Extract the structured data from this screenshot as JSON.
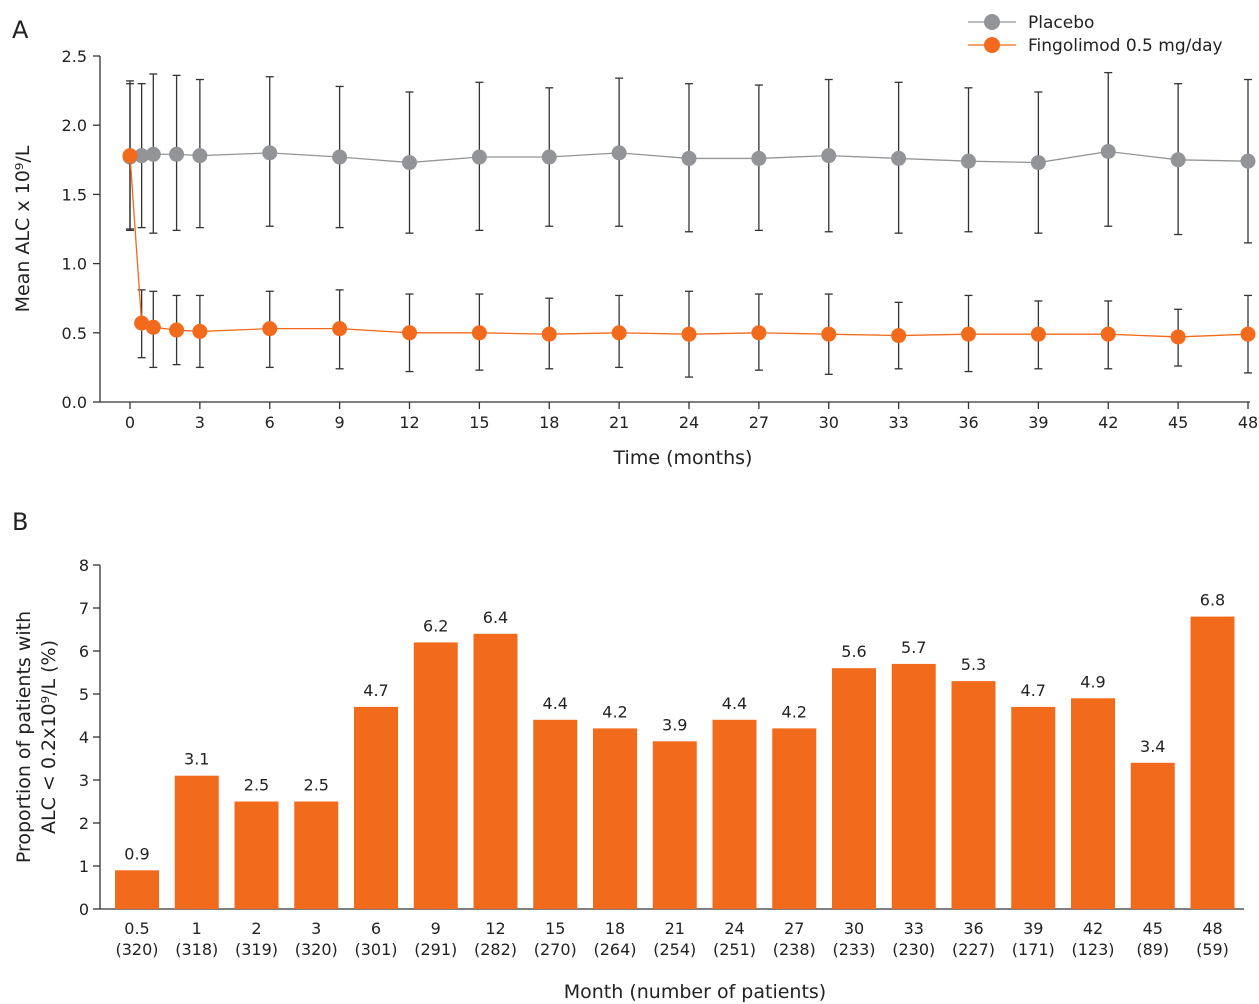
{
  "chart_data": [
    {
      "panel_label": "A",
      "type": "line",
      "xlabel": "Time (months)",
      "ylabel": "Mean ALC x 10⁹/L",
      "xlim": [
        0,
        48
      ],
      "ylim": [
        0,
        2.5
      ],
      "x_ticks": [
        "0",
        "3",
        "6",
        "9",
        "12",
        "15",
        "18",
        "21",
        "24",
        "27",
        "30",
        "33",
        "36",
        "39",
        "42",
        "45",
        "48"
      ],
      "y_ticks": [
        "0.0",
        "0.5",
        "1.0",
        "1.5",
        "2.0",
        "2.5"
      ],
      "grid": false,
      "legend_position": "top-right",
      "series": [
        {
          "name": "Placebo",
          "color": "#929497",
          "x": [
            0,
            0.5,
            1,
            2,
            3,
            6,
            9,
            12,
            15,
            18,
            21,
            24,
            27,
            30,
            33,
            36,
            39,
            42,
            45,
            48
          ],
          "y": [
            1.77,
            1.78,
            1.79,
            1.79,
            1.78,
            1.8,
            1.77,
            1.73,
            1.77,
            1.77,
            1.8,
            1.76,
            1.76,
            1.78,
            1.76,
            1.74,
            1.73,
            1.81,
            1.75,
            1.74
          ],
          "upper": [
            2.32,
            2.3,
            2.37,
            2.36,
            2.33,
            2.35,
            2.28,
            2.24,
            2.31,
            2.27,
            2.34,
            2.3,
            2.29,
            2.33,
            2.31,
            2.27,
            2.24,
            2.38,
            2.3,
            2.33
          ],
          "lower": [
            1.24,
            1.26,
            1.22,
            1.24,
            1.26,
            1.27,
            1.26,
            1.22,
            1.24,
            1.27,
            1.27,
            1.23,
            1.24,
            1.23,
            1.22,
            1.23,
            1.22,
            1.27,
            1.21,
            1.15
          ]
        },
        {
          "name": "Fingolimod 0.5 mg/day",
          "color": "#f26a1b",
          "x": [
            0,
            0.5,
            1,
            2,
            3,
            6,
            9,
            12,
            15,
            18,
            21,
            24,
            27,
            30,
            33,
            36,
            39,
            42,
            45,
            48
          ],
          "y": [
            1.78,
            0.57,
            0.54,
            0.52,
            0.51,
            0.53,
            0.53,
            0.5,
            0.5,
            0.49,
            0.5,
            0.49,
            0.5,
            0.49,
            0.48,
            0.49,
            0.49,
            0.49,
            0.47,
            0.49
          ],
          "upper": [
            2.3,
            0.81,
            0.8,
            0.77,
            0.77,
            0.8,
            0.81,
            0.78,
            0.78,
            0.75,
            0.77,
            0.8,
            0.78,
            0.78,
            0.72,
            0.77,
            0.73,
            0.73,
            0.67,
            0.77
          ],
          "lower": [
            1.25,
            0.32,
            0.25,
            0.27,
            0.25,
            0.25,
            0.24,
            0.22,
            0.23,
            0.24,
            0.25,
            0.18,
            0.23,
            0.2,
            0.24,
            0.22,
            0.24,
            0.24,
            0.26,
            0.21
          ]
        }
      ]
    },
    {
      "panel_label": "B",
      "type": "bar",
      "xlabel": "Month (number of patients)",
      "ylabel_line1": "Proportion of patients with",
      "ylabel_line2": "ALC < 0.2x10⁹/L (%)",
      "ylim": [
        0,
        8
      ],
      "y_ticks": [
        "0",
        "1",
        "2",
        "3",
        "4",
        "5",
        "6",
        "7",
        "8"
      ],
      "grid": false,
      "bar_color": "#f26a1b",
      "categories": [
        "0.5",
        "1",
        "2",
        "3",
        "6",
        "9",
        "12",
        "15",
        "18",
        "21",
        "24",
        "27",
        "30",
        "33",
        "36",
        "39",
        "42",
        "45",
        "48"
      ],
      "patients": [
        "(320)",
        "(318)",
        "(319)",
        "(320)",
        "(301)",
        "(291)",
        "(282)",
        "(270)",
        "(264)",
        "(254)",
        "(251)",
        "(238)",
        "(233)",
        "(230)",
        "(227)",
        "(171)",
        "(123)",
        "(89)",
        "(59)"
      ],
      "values": [
        0.9,
        3.1,
        2.5,
        2.5,
        4.7,
        6.2,
        6.4,
        4.4,
        4.2,
        3.9,
        4.4,
        4.2,
        5.6,
        5.7,
        5.3,
        4.7,
        4.9,
        3.4,
        6.8
      ],
      "value_labels": [
        "0.9",
        "3.1",
        "2.5",
        "2.5",
        "4.7",
        "6.2",
        "6.4",
        "4.4",
        "4.2",
        "3.9",
        "4.4",
        "4.2",
        "5.6",
        "5.7",
        "5.3",
        "4.7",
        "4.9",
        "3.4",
        "6.8"
      ]
    }
  ]
}
